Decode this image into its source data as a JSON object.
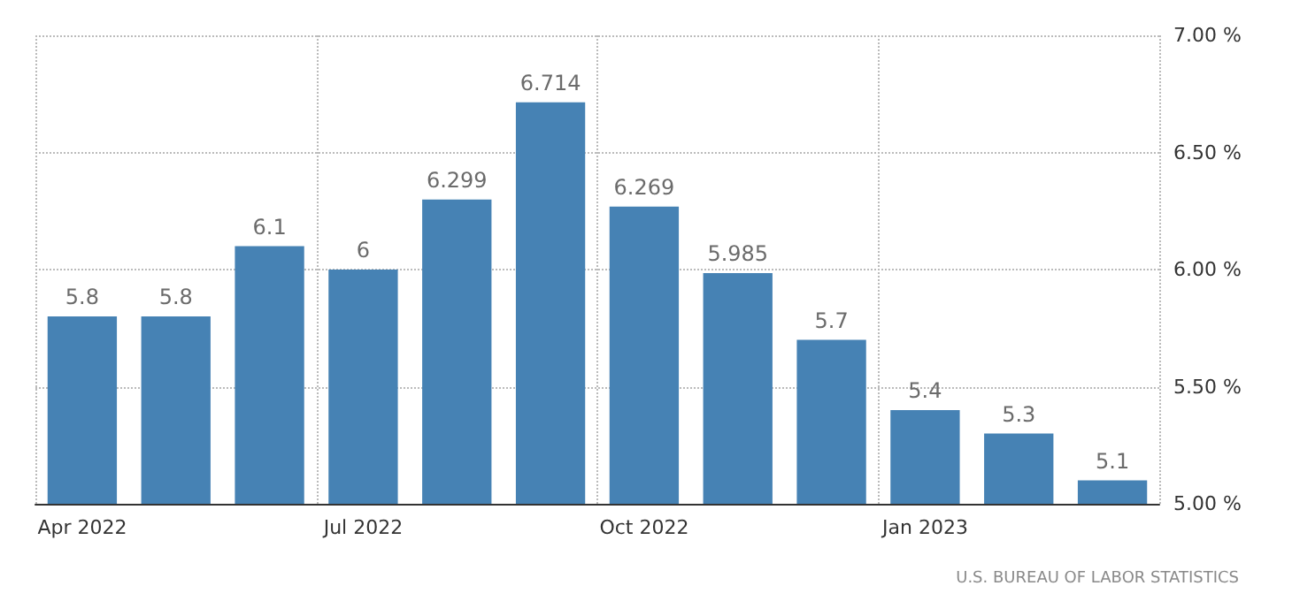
{
  "chart_data": {
    "type": "bar",
    "categories": [
      "Apr 2022",
      null,
      null,
      "Jul 2022",
      null,
      null,
      "Oct 2022",
      null,
      null,
      "Jan 2023",
      null,
      null
    ],
    "values": [
      5.8,
      5.8,
      6.1,
      6,
      6.299,
      6.714,
      6.269,
      5.985,
      5.7,
      5.4,
      5.3,
      5.1
    ],
    "color": "#4682b4",
    "ylim": [
      5,
      7
    ],
    "yticks": [
      {
        "value": 5,
        "label": "5.00 %"
      },
      {
        "value": 5.5,
        "label": "5.50 %"
      },
      {
        "value": 6,
        "label": "6.00 %"
      },
      {
        "value": 6.5,
        "label": "6.50 %"
      },
      {
        "value": 7,
        "label": "7.00 %"
      }
    ],
    "grid": true,
    "data_labels": true,
    "annotations": [
      "U.S. BUREAU OF LABOR STATISTICS"
    ]
  }
}
